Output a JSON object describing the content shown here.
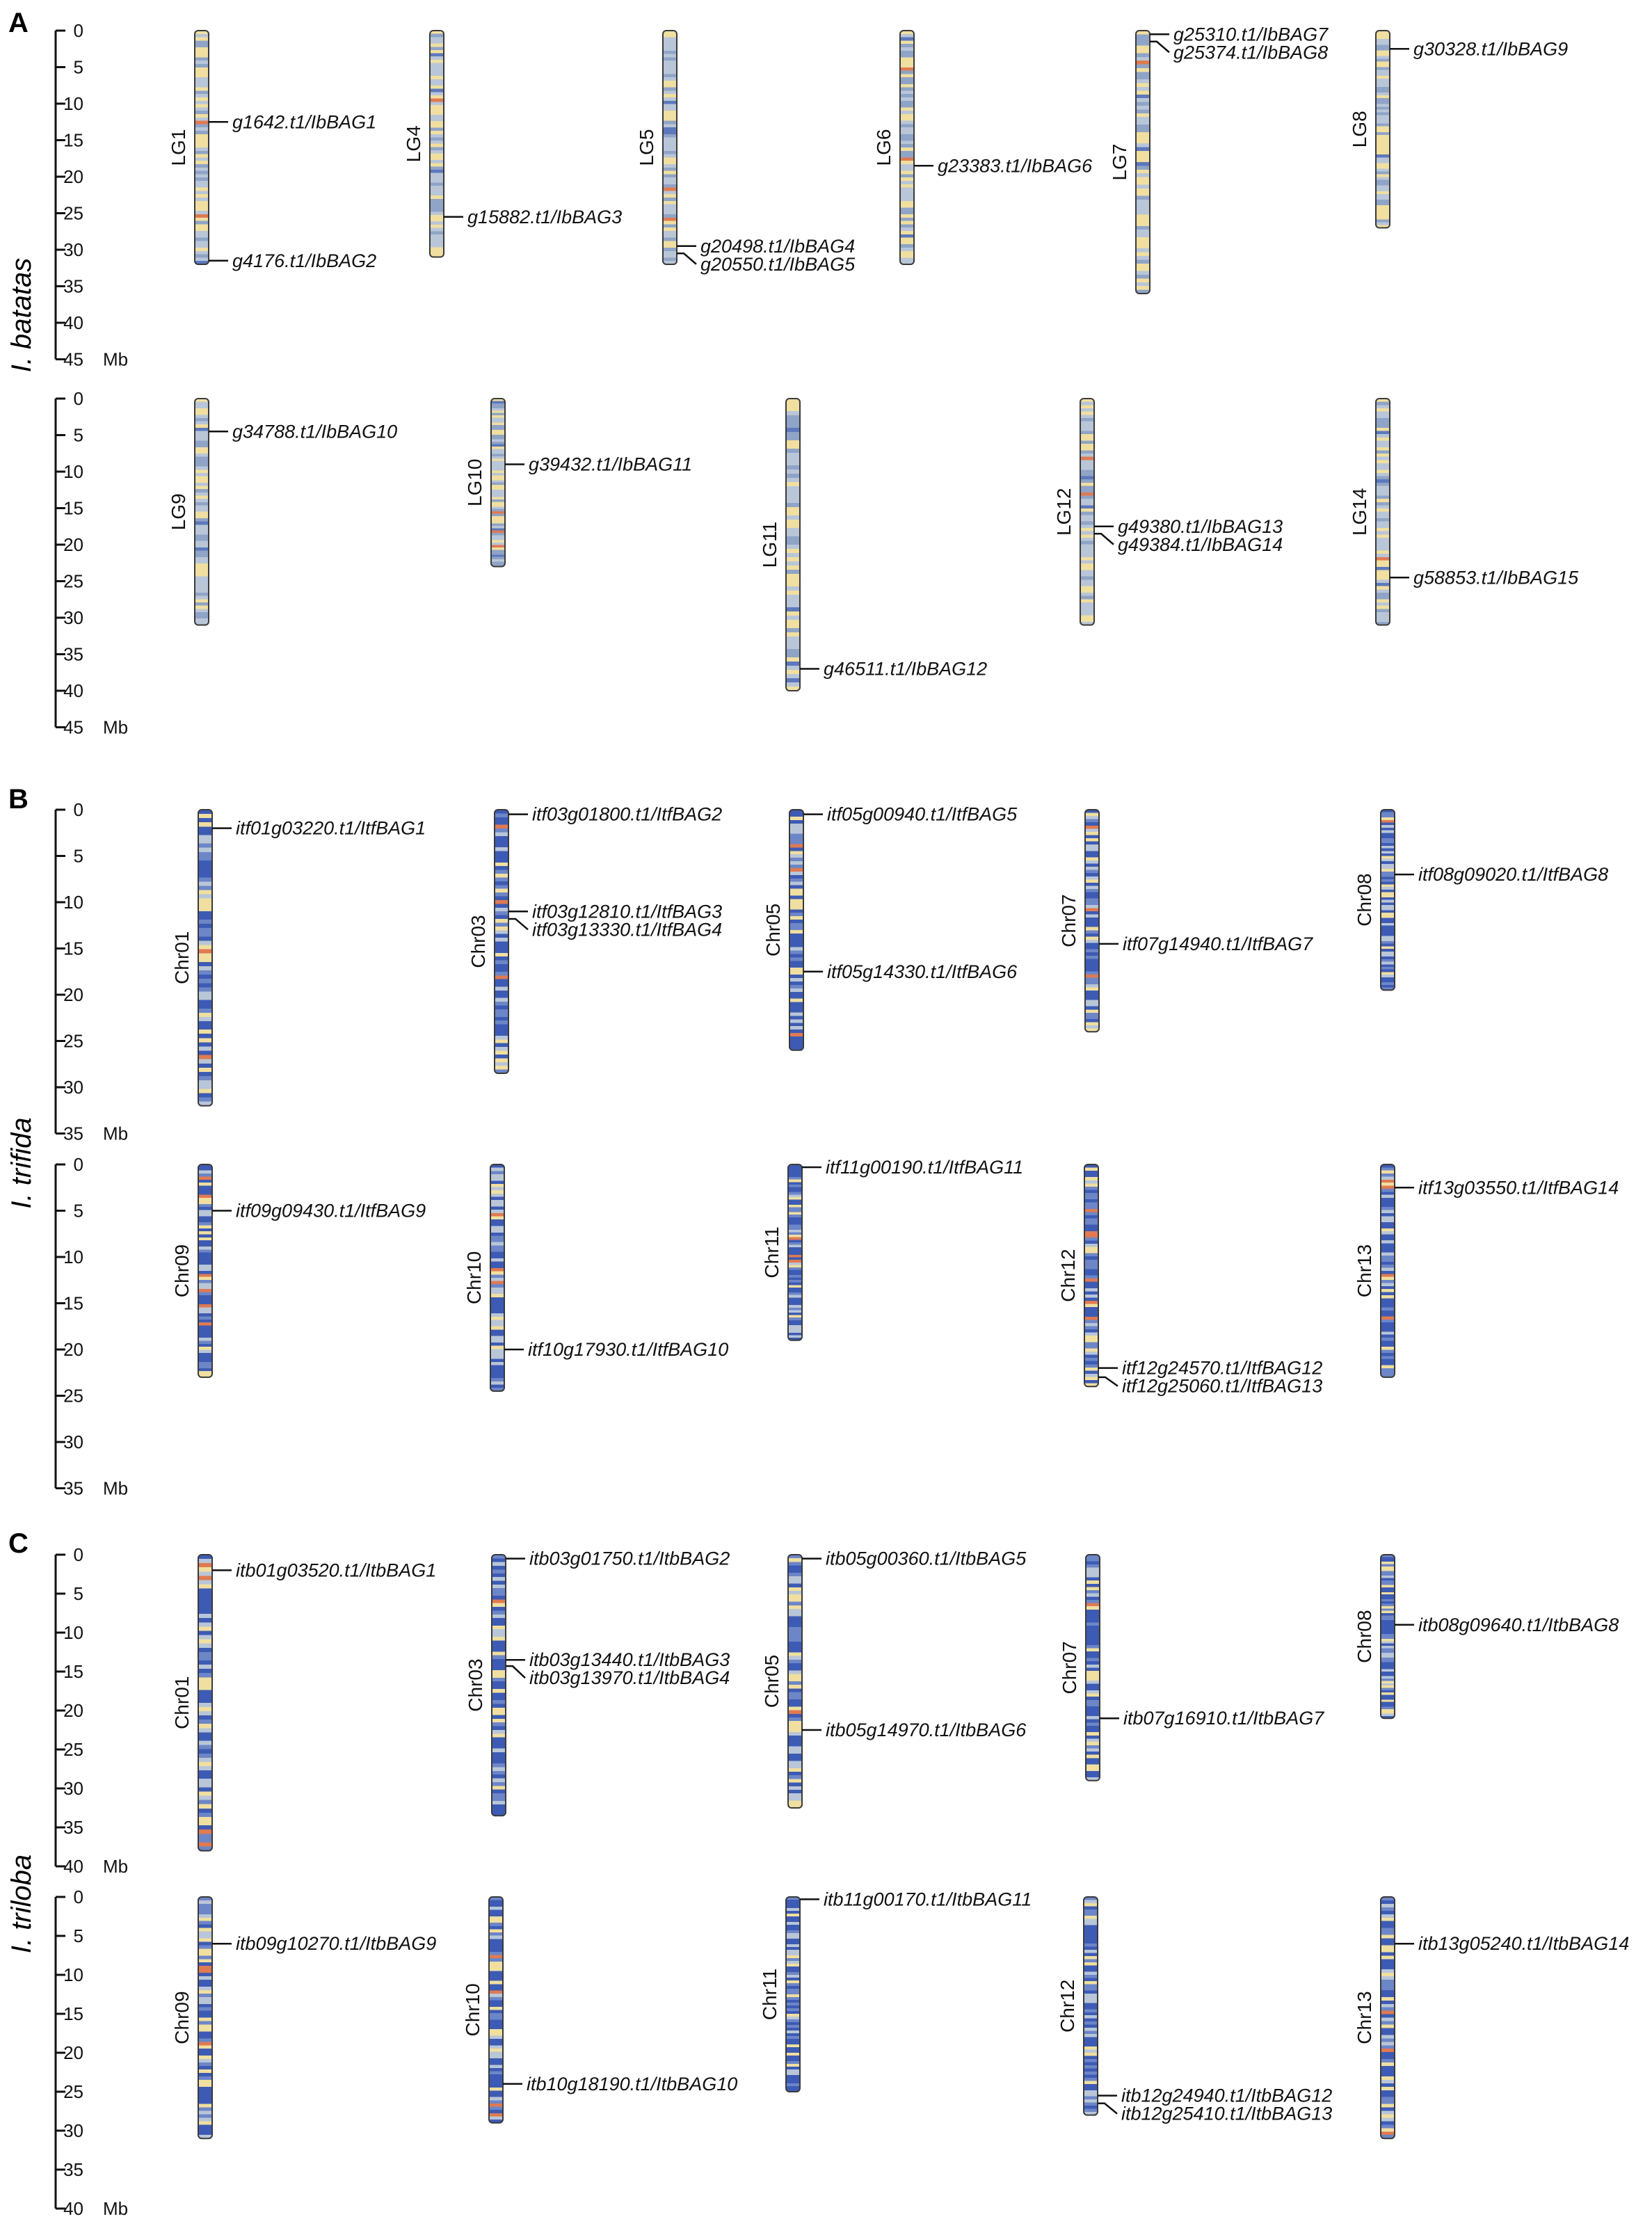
{
  "figure": {
    "unit": "Mb",
    "colors": {
      "low": "#3d5bb5",
      "mid": "#b9c6d8",
      "high": "#f0dfa0",
      "hot": "#e07a52",
      "line": "#111111"
    },
    "panels": [
      {
        "letter": "A",
        "species": "I. batatas",
        "rows": [
          {
            "axis_max": 45,
            "ticks": [
              0,
              5,
              10,
              15,
              20,
              25,
              30,
              35,
              40,
              45
            ],
            "chromosomes": [
              {
                "name": "LG1",
                "length": 32,
                "palette": "pale",
                "genes": [
                  {
                    "pos": 12.5,
                    "label": "g1642.t1/IbBAG1"
                  },
                  {
                    "pos": 31.5,
                    "label": "g4176.t1/IbBAG2"
                  }
                ]
              },
              {
                "name": "LG4",
                "length": 31,
                "palette": "pale",
                "genes": [
                  {
                    "pos": 25.5,
                    "label": "g15882.t1/IbBAG3"
                  }
                ]
              },
              {
                "name": "LG5",
                "length": 32,
                "palette": "pale",
                "genes": [
                  {
                    "pos": 29.5,
                    "label": "g20498.t1/IbBAG4"
                  },
                  {
                    "pos": 30.5,
                    "label": "g20550.t1/IbBAG5"
                  }
                ]
              },
              {
                "name": "LG6",
                "length": 32,
                "palette": "pale",
                "genes": [
                  {
                    "pos": 18.5,
                    "label": "g23383.t1/IbBAG6"
                  }
                ]
              },
              {
                "name": "LG7",
                "length": 36,
                "palette": "pale",
                "genes": [
                  {
                    "pos": 0.5,
                    "label": "g25310.t1/IbBAG7"
                  },
                  {
                    "pos": 1.5,
                    "label": "g25374.t1/IbBAG8"
                  }
                ]
              },
              {
                "name": "LG8",
                "length": 27,
                "palette": "pale",
                "genes": [
                  {
                    "pos": 2.5,
                    "label": "g30328.t1/IbBAG9"
                  }
                ]
              }
            ]
          },
          {
            "axis_max": 45,
            "ticks": [
              0,
              5,
              10,
              15,
              20,
              25,
              30,
              35,
              40,
              45
            ],
            "chromosomes": [
              {
                "name": "LG9",
                "length": 31,
                "palette": "pale",
                "genes": [
                  {
                    "pos": 4.5,
                    "label": "g34788.t1/IbBAG10"
                  }
                ]
              },
              {
                "name": "LG10",
                "length": 23,
                "palette": "pale",
                "genes": [
                  {
                    "pos": 9,
                    "label": "g39432.t1/IbBAG11"
                  }
                ]
              },
              {
                "name": "LG11",
                "length": 40,
                "palette": "pale",
                "genes": [
                  {
                    "pos": 37,
                    "label": "g46511.t1/IbBAG12"
                  }
                ]
              },
              {
                "name": "LG12",
                "length": 31,
                "palette": "pale",
                "genes": [
                  {
                    "pos": 17.5,
                    "label": "g49380.t1/IbBAG13"
                  },
                  {
                    "pos": 18.5,
                    "label": "g49384.t1/IbBAG14"
                  }
                ]
              },
              {
                "name": "LG14",
                "length": 31,
                "palette": "pale",
                "genes": [
                  {
                    "pos": 24.5,
                    "label": "g58853.t1/IbBAG15"
                  }
                ]
              }
            ]
          }
        ]
      },
      {
        "letter": "B",
        "species": "I. trifida",
        "rows": [
          {
            "axis_max": 35,
            "ticks": [
              0,
              5,
              10,
              15,
              20,
              25,
              30,
              35
            ],
            "chromosomes": [
              {
                "name": "Chr01",
                "length": 32,
                "palette": "blue",
                "genes": [
                  {
                    "pos": 2,
                    "label": "itf01g03220.t1/ItfBAG1"
                  }
                ]
              },
              {
                "name": "Chr03",
                "length": 28.5,
                "palette": "blue",
                "genes": [
                  {
                    "pos": 0.5,
                    "label": "itf03g01800.t1/ItfBAG2"
                  },
                  {
                    "pos": 11,
                    "label": "itf03g12810.t1/ItfBAG3"
                  },
                  {
                    "pos": 11.8,
                    "label": "itf03g13330.t1/ItfBAG4"
                  }
                ]
              },
              {
                "name": "Chr05",
                "length": 26,
                "palette": "blue",
                "genes": [
                  {
                    "pos": 0.5,
                    "label": "itf05g00940.t1/ItfBAG5"
                  },
                  {
                    "pos": 17.5,
                    "label": "itf05g14330.t1/ItfBAG6"
                  }
                ]
              },
              {
                "name": "Chr07",
                "length": 24,
                "palette": "blue",
                "genes": [
                  {
                    "pos": 14.5,
                    "label": "itf07g14940.t1/ItfBAG7"
                  }
                ]
              },
              {
                "name": "Chr08",
                "length": 19.5,
                "palette": "blue",
                "genes": [
                  {
                    "pos": 7,
                    "label": "itf08g09020.t1/ItfBAG8"
                  }
                ]
              }
            ]
          },
          {
            "axis_max": 35,
            "ticks": [
              0,
              5,
              10,
              15,
              20,
              25,
              30,
              35
            ],
            "chromosomes": [
              {
                "name": "Chr09",
                "length": 23,
                "palette": "blue",
                "genes": [
                  {
                    "pos": 5,
                    "label": "itf09g09430.t1/ItfBAG9"
                  }
                ]
              },
              {
                "name": "Chr10",
                "length": 24.5,
                "palette": "blue",
                "genes": [
                  {
                    "pos": 20,
                    "label": "itf10g17930.t1/ItfBAG10"
                  }
                ]
              },
              {
                "name": "Chr11",
                "length": 19,
                "palette": "blue",
                "genes": [
                  {
                    "pos": 0.3,
                    "label": "itf11g00190.t1/ItfBAG11"
                  }
                ]
              },
              {
                "name": "Chr12",
                "length": 24,
                "palette": "blue",
                "genes": [
                  {
                    "pos": 22,
                    "label": "itf12g24570.t1/ItfBAG12"
                  },
                  {
                    "pos": 23,
                    "label": "itf12g25060.t1/ItfBAG13"
                  }
                ]
              },
              {
                "name": "Chr13",
                "length": 23,
                "palette": "blue",
                "genes": [
                  {
                    "pos": 2.5,
                    "label": "itf13g03550.t1/ItfBAG14"
                  }
                ]
              }
            ]
          }
        ]
      },
      {
        "letter": "C",
        "species": "I. triloba",
        "rows": [
          {
            "axis_max": 40,
            "ticks": [
              0,
              5,
              10,
              15,
              20,
              25,
              30,
              35,
              40
            ],
            "chromosomes": [
              {
                "name": "Chr01",
                "length": 38,
                "palette": "blue",
                "genes": [
                  {
                    "pos": 2,
                    "label": "itb01g03520.t1/ItbBAG1"
                  }
                ]
              },
              {
                "name": "Chr03",
                "length": 33.5,
                "palette": "blue",
                "genes": [
                  {
                    "pos": 0.5,
                    "label": "itb03g01750.t1/ItbBAG2"
                  },
                  {
                    "pos": 13.5,
                    "label": "itb03g13440.t1/ItbBAG3"
                  },
                  {
                    "pos": 14.3,
                    "label": "itb03g13970.t1/ItbBAG4"
                  }
                ]
              },
              {
                "name": "Chr05",
                "length": 32.5,
                "palette": "blue",
                "genes": [
                  {
                    "pos": 0.5,
                    "label": "itb05g00360.t1/ItbBAG5"
                  },
                  {
                    "pos": 22.5,
                    "label": "itb05g14970.t1/ItbBAG6"
                  }
                ]
              },
              {
                "name": "Chr07",
                "length": 29,
                "palette": "blue",
                "genes": [
                  {
                    "pos": 21,
                    "label": "itb07g16910.t1/ItbBAG7"
                  }
                ]
              },
              {
                "name": "Chr08",
                "length": 21,
                "palette": "blue",
                "genes": [
                  {
                    "pos": 9,
                    "label": "itb08g09640.t1/ItbBAG8"
                  }
                ]
              }
            ]
          },
          {
            "axis_max": 40,
            "ticks": [
              0,
              5,
              10,
              15,
              20,
              25,
              30,
              35,
              40
            ],
            "chromosomes": [
              {
                "name": "Chr09",
                "length": 31,
                "palette": "blue",
                "genes": [
                  {
                    "pos": 6,
                    "label": "itb09g10270.t1/ItbBAG9"
                  }
                ]
              },
              {
                "name": "Chr10",
                "length": 29,
                "palette": "blue",
                "genes": [
                  {
                    "pos": 24,
                    "label": "itb10g18190.t1/ItbBAG10"
                  }
                ]
              },
              {
                "name": "Chr11",
                "length": 25,
                "palette": "blue",
                "genes": [
                  {
                    "pos": 0.3,
                    "label": "itb11g00170.t1/ItbBAG11"
                  }
                ]
              },
              {
                "name": "Chr12",
                "length": 28,
                "palette": "blue",
                "genes": [
                  {
                    "pos": 25.5,
                    "label": "itb12g24940.t1/ItbBAG12"
                  },
                  {
                    "pos": 26.5,
                    "label": "itb12g25410.t1/ItbBAG13"
                  }
                ]
              },
              {
                "name": "Chr13",
                "length": 31,
                "palette": "blue",
                "genes": [
                  {
                    "pos": 6,
                    "label": "itb13g05240.t1/ItbBAG14"
                  }
                ]
              }
            ]
          }
        ]
      }
    ]
  }
}
